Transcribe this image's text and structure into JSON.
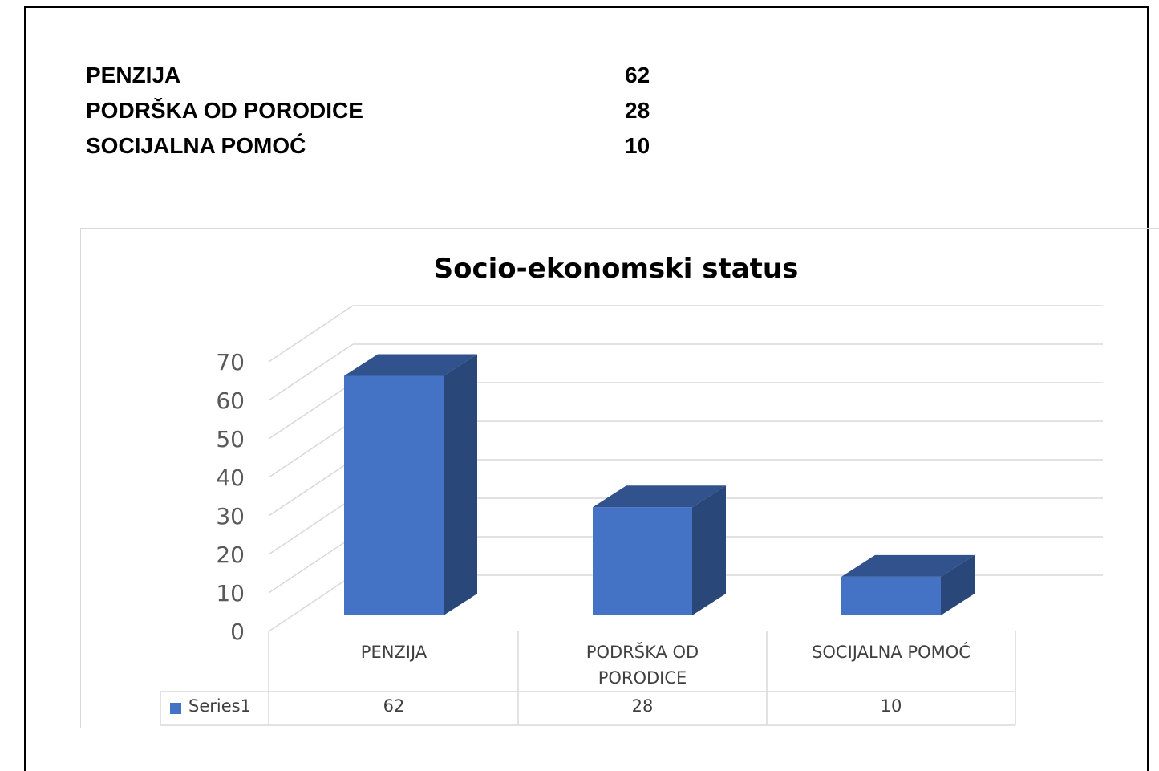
{
  "table": {
    "rows": [
      [
        "PENZIJA",
        62
      ],
      [
        "PODRŠKA OD PORODICE",
        28
      ],
      [
        "SOCIJALNA POMOĆ",
        10
      ]
    ]
  },
  "chart_data": {
    "type": "bar",
    "title": "Socio-ekonomski status",
    "categories": [
      "PENZIJA",
      "PODRŠKA OD PORODICE",
      "SOCIJALNA POMOĆ"
    ],
    "series": [
      {
        "name": "Series1",
        "color": "#4472c4",
        "values": [
          62,
          28,
          10
        ]
      }
    ],
    "ylim": [
      0,
      70
    ],
    "yticks": [
      0,
      10,
      20,
      30,
      40,
      50,
      60,
      70
    ],
    "grid": true
  }
}
